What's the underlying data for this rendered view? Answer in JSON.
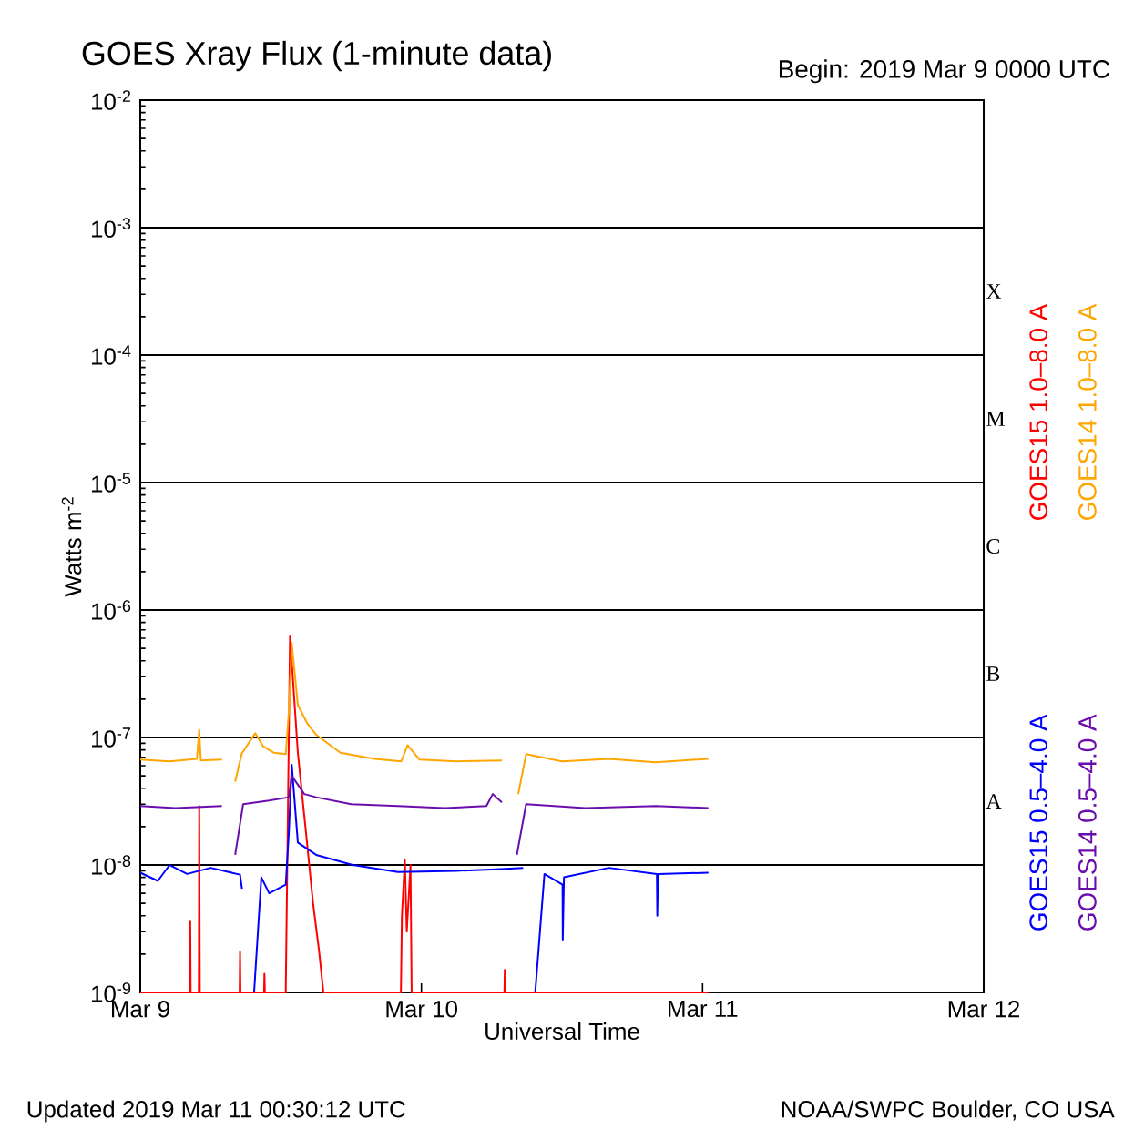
{
  "chart_data": {
    "type": "line",
    "title": "GOES Xray Flux (1-minute data)",
    "subtitle": "Begin:  2019 Mar 9 0000 UTC",
    "xlabel": "Universal Time",
    "ylabel": "Watts m$^{-2}$",
    "annotations": [
      "Updated 2019 Mar 11 00:30:12 UTC",
      "NOAA/SWPC Boulder, CO USA",
      "A",
      "B",
      "C",
      "M",
      "X"
    ],
    "log": true,
    "grid": "y",
    "legend": "right",
    "xlim": [
      "2019-03-09",
      "2019-03-12"
    ],
    "xticks": [
      {
        "value": "2019-03-09",
        "label": "Mar 9"
      },
      {
        "value": "2019-03-10",
        "label": "Mar 10"
      },
      {
        "value": "2019-03-11",
        "label": "Mar 11"
      },
      {
        "value": "2019-03-12",
        "label": "Mar 12"
      }
    ],
    "ylim": [
      1e-09,
      0.01
    ],
    "yticks": [
      {
        "value": 1e-09,
        "label": "10$^{-9}$"
      },
      {
        "value": 1e-08,
        "label": "10$^{-8}$"
      },
      {
        "value": 1e-07,
        "label": "10$^{-7}$"
      },
      {
        "value": 1e-06,
        "label": "10$^{-6}$"
      },
      {
        "value": 1e-05,
        "label": "10$^{-5}$"
      },
      {
        "value": 0.0001,
        "label": "10$^{-4}$"
      },
      {
        "value": 0.001,
        "label": "10$^{-3}$"
      },
      {
        "value": 0.01,
        "label": "10$^{-2}$"
      }
    ],
    "series": [
      {
        "name": "GOES15 1.0–8.0 A",
        "color": "#ff0000",
        "x": [
          "2019-03-09T00:00",
          "2019-03-09T04:14",
          "2019-03-09T04:16",
          "2019-03-09T04:18",
          "2019-03-09T05:00",
          "2019-03-09T05:02",
          "2019-03-09T05:05",
          "2019-03-09T08:29",
          "2019-03-09T08:31",
          "2019-03-09T08:33",
          "2019-03-09T10:34",
          "2019-03-09T10:36",
          "2019-03-09T10:38",
          "2019-03-09T12:25",
          "2019-03-09T12:47",
          "2019-03-09T13:27",
          "2019-03-09T14:14",
          "2019-03-09T14:45",
          "2019-03-09T15:16",
          "2019-03-09T15:38",
          "2019-03-09T22:15",
          "2019-03-09T22:20",
          "2019-03-09T22:35",
          "2019-03-09T22:45",
          "2019-03-09T23:04",
          "2019-03-09T23:10",
          "2019-03-10T07:05",
          "2019-03-10T07:07",
          "2019-03-10T07:09",
          "2019-03-11T00:30"
        ],
        "values": [
          1e-09,
          1e-09,
          3.6e-09,
          1e-09,
          1e-09,
          2.9e-08,
          1e-09,
          1e-09,
          2.1e-09,
          1e-09,
          1e-09,
          1.4e-09,
          1e-09,
          1e-09,
          6.3e-07,
          7.6e-08,
          1.5e-08,
          5e-09,
          2.1e-09,
          1e-09,
          1e-09,
          4e-09,
          1.1e-08,
          3e-09,
          1e-08,
          1e-09,
          1e-09,
          1.5e-09,
          1e-09,
          1e-09
        ]
      },
      {
        "name": "GOES14 1.0–8.0 A",
        "color": "#ffa500",
        "x": [
          "2019-03-09T00:00",
          "2019-03-09T02:30",
          "2019-03-09T04:50",
          "2019-03-09T05:02",
          "2019-03-09T05:10",
          "2019-03-09T06:58",
          "2019-03-09T06:59",
          "2019-03-09T08:06",
          "2019-03-09T08:40",
          "2019-03-09T09:49",
          "2019-03-09T10:30",
          "2019-03-09T11:23",
          "2019-03-09T12:25",
          "2019-03-09T12:41",
          "2019-03-09T12:56",
          "2019-03-09T13:27",
          "2019-03-09T14:14",
          "2019-03-09T15:01",
          "2019-03-09T17:05",
          "2019-03-09T20:00",
          "2019-03-09T22:17",
          "2019-03-09T22:49",
          "2019-03-09T23:50",
          "2019-03-10T03:00",
          "2019-03-10T06:52",
          "2019-03-10T06:53",
          "2019-03-10T08:16",
          "2019-03-10T08:56",
          "2019-03-10T12:00",
          "2019-03-10T16:00",
          "2019-03-10T20:00",
          "2019-03-11T00:30"
        ],
        "values": [
          6.7e-08,
          6.5e-08,
          6.8e-08,
          1.15e-07,
          6.6e-08,
          6.7e-08,
          null,
          4.5e-08,
          7.5e-08,
          1.08e-07,
          8.5e-08,
          7.6e-08,
          7.4e-08,
          1.6e-07,
          5.5e-07,
          1.8e-07,
          1.3e-07,
          1.05e-07,
          7.6e-08,
          6.8e-08,
          6.5e-08,
          8.7e-08,
          6.7e-08,
          6.5e-08,
          6.6e-08,
          null,
          3.6e-08,
          7.4e-08,
          6.5e-08,
          6.8e-08,
          6.4e-08,
          6.8e-08
        ]
      },
      {
        "name": "GOES15 0.5–4.0 A",
        "color": "#0000ff",
        "x": [
          "2019-03-09T00:00",
          "2019-03-09T01:30",
          "2019-03-09T02:30",
          "2019-03-09T04:00",
          "2019-03-09T06:00",
          "2019-03-09T08:31",
          "2019-03-09T08:41",
          "2019-03-09T08:42",
          "2019-03-09T09:43",
          "2019-03-09T10:20",
          "2019-03-09T11:00",
          "2019-03-09T12:25",
          "2019-03-09T12:41",
          "2019-03-09T12:56",
          "2019-03-09T13:27",
          "2019-03-09T15:01",
          "2019-03-09T18:08",
          "2019-03-09T22:00",
          "2019-03-10T03:00",
          "2019-03-10T06:00",
          "2019-03-10T08:41",
          "2019-03-10T08:42",
          "2019-03-10T09:43",
          "2019-03-10T10:30",
          "2019-03-10T12:03",
          "2019-03-10T12:04",
          "2019-03-10T12:10",
          "2019-03-10T16:00",
          "2019-03-10T20:06",
          "2019-03-10T20:08",
          "2019-03-10T20:12",
          "2019-03-11T00:30"
        ],
        "values": [
          8.7e-09,
          7.5e-09,
          1e-08,
          8.5e-09,
          9.5e-09,
          8.4e-09,
          6.5e-09,
          null,
          1e-09,
          8e-09,
          6e-09,
          7e-09,
          1.8e-08,
          6.1e-08,
          1.5e-08,
          1.2e-08,
          1e-08,
          8.8e-09,
          9e-09,
          9.2e-09,
          9.5e-09,
          null,
          1e-09,
          8.5e-09,
          7e-09,
          2.6e-09,
          8e-09,
          9.5e-09,
          8.5e-09,
          4e-09,
          8.5e-09,
          8.7e-09
        ]
      },
      {
        "name": "GOES14 0.5–4.0 A",
        "color": "#6a0dad",
        "x": [
          "2019-03-09T00:00",
          "2019-03-09T03:00",
          "2019-03-09T06:58",
          "2019-03-09T06:59",
          "2019-03-09T08:06",
          "2019-03-09T08:47",
          "2019-03-09T11:00",
          "2019-03-09T12:41",
          "2019-03-09T12:56",
          "2019-03-09T14:00",
          "2019-03-09T15:01",
          "2019-03-09T18:00",
          "2019-03-09T22:00",
          "2019-03-10T02:00",
          "2019-03-10T05:33",
          "2019-03-10T06:05",
          "2019-03-10T06:52",
          "2019-03-10T06:53",
          "2019-03-10T08:09",
          "2019-03-10T08:56",
          "2019-03-10T14:00",
          "2019-03-10T20:00",
          "2019-03-11T00:30"
        ],
        "values": [
          2.9e-08,
          2.8e-08,
          2.9e-08,
          null,
          1.2e-08,
          3e-08,
          3.2e-08,
          3.4e-08,
          5e-08,
          3.6e-08,
          3.4e-08,
          3e-08,
          2.9e-08,
          2.8e-08,
          2.9e-08,
          3.6e-08,
          3.1e-08,
          null,
          1.2e-08,
          3e-08,
          2.8e-08,
          2.9e-08,
          2.8e-08
        ]
      }
    ]
  }
}
